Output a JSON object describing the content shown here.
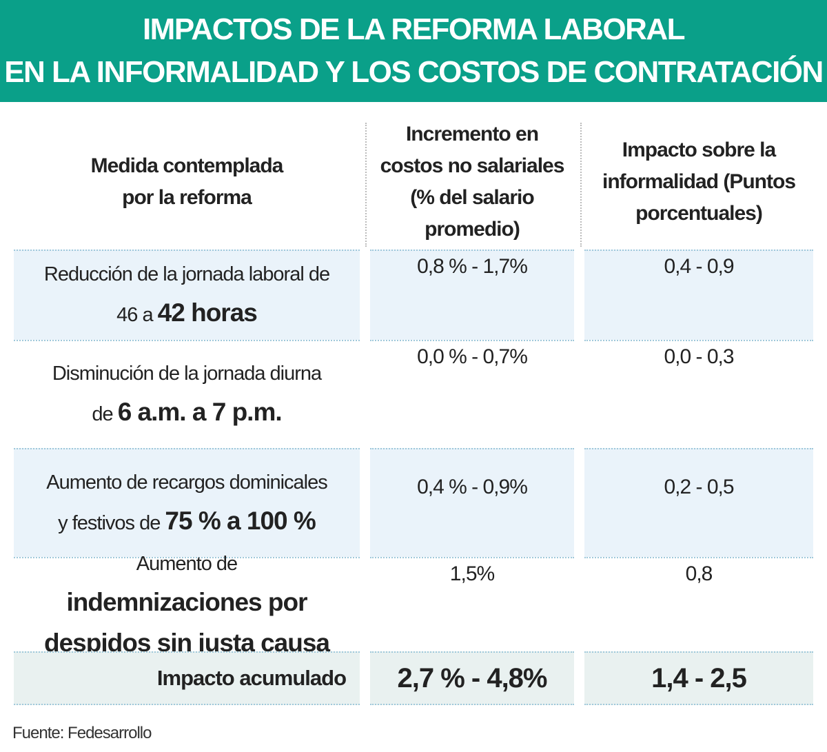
{
  "header": {
    "title": [
      "IMPACTOS DE LA REFORMA LABORAL",
      "EN LA INFORMALIDAD Y LOS COSTOS DE CONTRATACIÓN"
    ]
  },
  "table": {
    "columns": [
      "Medida contemplada por la reforma",
      "Incremento en costos no salariales (% del salario promedio)",
      "Impacto sobre la informalidad (Puntos porcentuales)"
    ],
    "rows": [
      {
        "measure_text": "Reducción de la jornada laboral de 46 a",
        "measure_emphasis": "42 horas",
        "cost": "0,8 % - 1,7%",
        "informality": "0,4 - 0,9"
      },
      {
        "measure_text": "Disminución de la jornada diurna de",
        "measure_emphasis": "6 a.m. a 7 p.m.",
        "cost": "0,0 % - 0,7%",
        "informality": "0,0 - 0,3"
      },
      {
        "measure_text": "Aumento de recargos dominicales y festivos de",
        "measure_emphasis": "75 % a 100 %",
        "cost": "0,4 % - 0,9%",
        "informality": "0,2 - 0,5"
      },
      {
        "measure_text": "Aumento de",
        "measure_emphasis": "indemnizaciones por despidos sin justa causa",
        "cost": "1,5%",
        "informality": "0,8"
      }
    ],
    "total": {
      "label": "Impacto acumulado",
      "cost": "2,7 % - 4,8%",
      "informality": "1,4 - 2,5"
    }
  },
  "source": "Fuente: Fedesarrollo"
}
